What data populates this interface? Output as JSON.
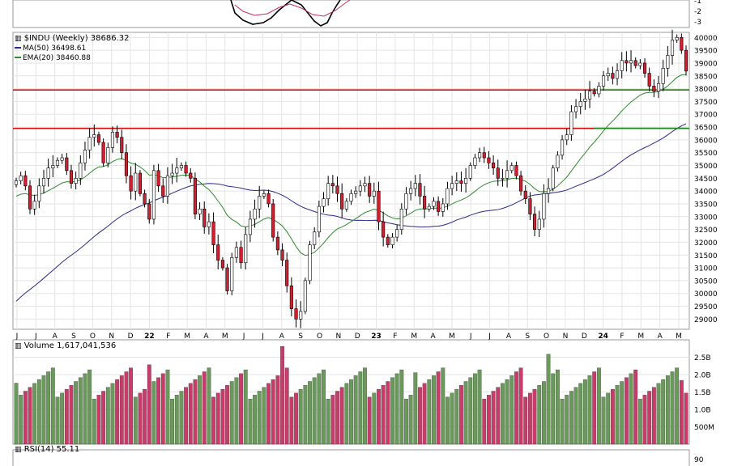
{
  "main": {
    "symbol_label": "$INDU (Weekly) 38686.32",
    "ma_label": "MA(50) 36498.61",
    "ema_label": "EMA(20) 38460.88"
  },
  "volume": {
    "label": "Volume 1,617,041,536"
  },
  "rsi": {
    "label": "RSI(14) 55.11",
    "top_tick": "90"
  },
  "top_panel": {
    "ticks": [
      "-1",
      "-2",
      "-3"
    ]
  },
  "colors": {
    "up": "#ffffff",
    "down": "#d32030",
    "wick": "#000000",
    "ma50": "#2a2a8c",
    "ema20": "#2e8b2e",
    "resistance": "#d01010",
    "support_line": "#1a8a1a",
    "vol_up": "#6a9a5a",
    "vol_down": "#c83c6a",
    "grid": "#e4e4e4",
    "panel_bg": "#ffffff"
  },
  "chart_data": [
    {
      "type": "candlestick",
      "title": "$INDU (Weekly) 38686.32",
      "x_ticks": [
        "J",
        "J",
        "A",
        "S",
        "O",
        "N",
        "D",
        "22",
        "F",
        "M",
        "A",
        "M",
        "J",
        "J",
        "A",
        "S",
        "O",
        "N",
        "D",
        "23",
        "F",
        "M",
        "A",
        "M",
        "J",
        "J",
        "A",
        "S",
        "O",
        "N",
        "D",
        "24",
        "F",
        "M",
        "A",
        "M"
      ],
      "y_ticks": [
        29000,
        29500,
        30000,
        30500,
        31000,
        31500,
        32000,
        32500,
        33000,
        33500,
        34000,
        34500,
        35000,
        35500,
        36000,
        36500,
        37000,
        37500,
        38000,
        38500,
        39000,
        39500,
        40000
      ],
      "ylim": [
        28600,
        40200
      ],
      "grid": true,
      "series": [
        {
          "name": "$INDU (Weekly)",
          "close_last": 38686.32,
          "closes": [
            34400,
            34600,
            34200,
            33300,
            33600,
            34200,
            34500,
            34900,
            35000,
            35200,
            35300,
            34800,
            34300,
            34500,
            35100,
            35600,
            36100,
            36200,
            35900,
            35100,
            35700,
            36300,
            36100,
            35500,
            34600,
            34000,
            34700,
            33900,
            33500,
            32900,
            34800,
            34200,
            33800,
            34600,
            34700,
            34900,
            35000,
            34700,
            34500,
            33100,
            33300,
            32600,
            32800,
            31900,
            31300,
            31000,
            30100,
            31400,
            31800,
            31200,
            32300,
            32900,
            33300,
            33800,
            33900,
            33500,
            32200,
            31700,
            31300,
            30300,
            29400,
            29000,
            29300,
            30500,
            31900,
            32400,
            33400,
            33700,
            34300,
            34200,
            33900,
            33300,
            33600,
            33900,
            34000,
            34200,
            34300,
            33800,
            34000,
            32800,
            32200,
            31900,
            32200,
            32500,
            33300,
            33900,
            34100,
            34300,
            33800,
            33300,
            33400,
            33600,
            33200,
            33500,
            34100,
            34300,
            34400,
            34300,
            34500,
            35000,
            35300,
            35500,
            35300,
            35100,
            34900,
            34500,
            34500,
            34800,
            35000,
            34600,
            34000,
            33700,
            33100,
            32500,
            32900,
            33900,
            34100,
            34900,
            35400,
            36000,
            36200,
            37100,
            37300,
            37500,
            37600,
            37900,
            37800,
            38100,
            38500,
            38600,
            38400,
            38700,
            39100,
            39000,
            39100,
            38900,
            39000,
            38600,
            38100,
            37900,
            38200,
            38800,
            39300,
            39900,
            40000,
            39500,
            38686
          ]
        },
        {
          "name": "MA(50)",
          "last": 36498.61
        },
        {
          "name": "EMA(20)",
          "last": 38460.88
        }
      ],
      "horizontal_lines": [
        {
          "value": 37950,
          "color": "red"
        },
        {
          "value": 36450,
          "color": "red"
        },
        {
          "value": 37950,
          "color": "green",
          "segment": "right"
        },
        {
          "value": 36450,
          "color": "green",
          "segment": "right"
        }
      ]
    },
    {
      "type": "bar",
      "title": "Volume 1,617,041,536",
      "y_ticks": [
        "500M",
        "1.0B",
        "1.5B",
        "2.0B",
        "2.5B"
      ],
      "ylim": [
        0,
        3000000000
      ],
      "grid": true
    }
  ]
}
